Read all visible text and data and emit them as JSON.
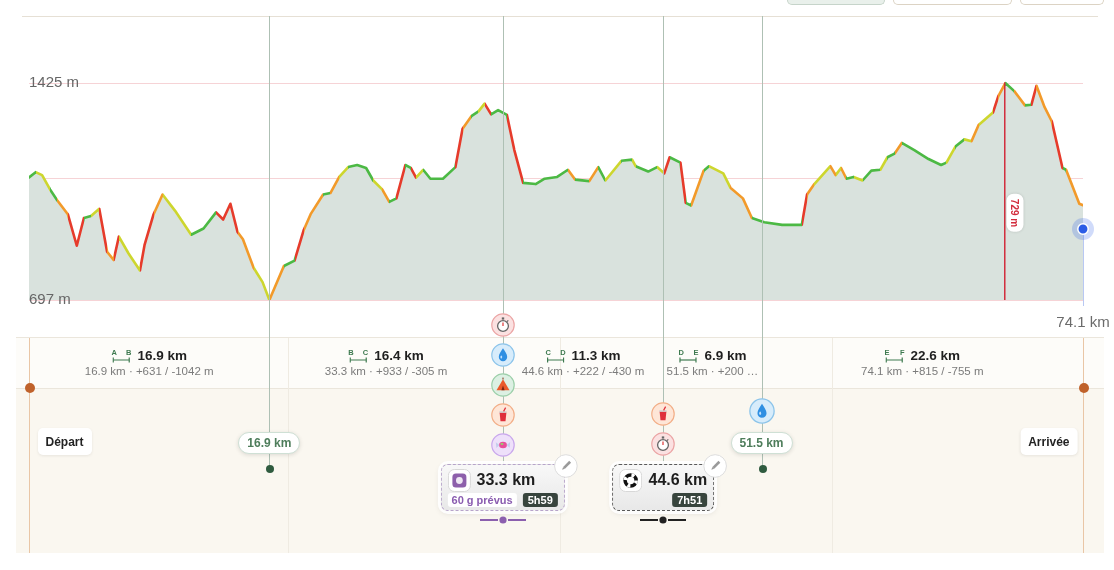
{
  "chart_data": {
    "type": "area",
    "x": [
      0,
      0.47,
      0.92,
      1.48,
      1.98,
      2.73,
      3.36,
      3.86,
      4.36,
      4.94,
      5.49,
      5.95,
      6.32,
      7.0,
      7.8,
      8.13,
      8.76,
      9.39,
      10.26,
      11.4,
      12.27,
      13.15,
      13.65,
      14.16,
      14.66,
      15.04,
      15.79,
      16.42,
      16.9,
      17.92,
      18.67,
      19.3,
      19.8,
      20.68,
      21.19,
      21.81,
      22.44,
      23.07,
      23.7,
      24.2,
      24.83,
      25.33,
      25.83,
      26.46,
      26.84,
      27.21,
      27.71,
      28.22,
      29.1,
      29.98,
      30.48,
      31.1,
      31.6,
      32.03,
      32.49,
      32.98,
      33.6,
      34.12,
      34.74,
      35.62,
      36.25,
      37.13,
      37.89,
      38.39,
      39.39,
      40.02,
      40.52,
      41.65,
      42.4,
      42.65,
      43.53,
      44.16,
      44.66,
      45.04,
      45.8,
      46.17,
      46.55,
      47.43,
      47.8,
      48.81,
      49.31,
      50.19,
      50.82,
      51.69,
      52.95,
      53.95,
      54.33,
      54.7,
      55.21,
      56.34,
      56.71,
      57.09,
      57.47,
      57.97,
      58.6,
      59.22,
      59.85,
      60.35,
      60.85,
      61.36,
      62.24,
      63.24,
      64.12,
      64.5,
      65.13,
      65.76,
      66.26,
      66.76,
      67.77,
      68.14,
      68.64,
      69.27,
      70.02,
      70.47,
      70.83,
      71.4,
      71.91,
      72.66,
      72.91,
      73.84,
      74.1
    ],
    "series": [
      {
        "type": "area",
        "color": "#d9e2dd",
        "values": [
          1108,
          1126,
          1116,
          1068,
          1032,
          985,
          879,
          972,
          979,
          1003,
          859,
          831,
          910,
          853,
          796,
          883,
          985,
          1051,
          997,
          916,
          937,
          991,
          967,
          1020,
          925,
          901,
          805,
          757,
          697,
          811,
          829,
          930,
          985,
          1051,
          1056,
          1110,
          1143,
          1150,
          1140,
          1098,
          1068,
          1026,
          1038,
          1150,
          1140,
          1108,
          1134,
          1104,
          1104,
          1143,
          1272,
          1314,
          1330,
          1356,
          1320,
          1334,
          1318,
          1200,
          1090,
          1086,
          1104,
          1110,
          1134,
          1101,
          1096,
          1143,
          1098,
          1164,
          1168,
          1146,
          1128,
          1143,
          1122,
          1176,
          1158,
          1023,
          1014,
          1131,
          1146,
          1122,
          1074,
          1038,
          972,
          958,
          949,
          949,
          949,
          1051,
          1086,
          1146,
          1116,
          1140,
          1104,
          1110,
          1098,
          1131,
          1134,
          1176,
          1188,
          1224,
          1200,
          1170,
          1150,
          1158,
          1212,
          1236,
          1230,
          1284,
          1326,
          1380,
          1425,
          1398,
          1350,
          1352,
          1416,
          1344,
          1296,
          1140,
          1134,
          1020,
          1015
        ],
        "colors": [
          "#4cb944",
          "#4cb944",
          "#cdd62e",
          "#cdd62e",
          "#4cb944",
          "#f29a2a",
          "#e63b2b",
          "#e63b2b",
          "#4cb944",
          "#cdd62e",
          "#e63b2b",
          "#f29a2a",
          "#e63b2b",
          "#cdd62e",
          "#cdd62e",
          "#e63b2b",
          "#e63b2b",
          "#f29a2a",
          "#cdd62e",
          "#cdd62e",
          "#4cb944",
          "#4cb944",
          "#e63b2b",
          "#e63b2b",
          "#e63b2b",
          "#f29a2a",
          "#f29a2a",
          "#cdd62e",
          "#cdd62e",
          "#f29a2a",
          "#4cb944",
          "#e63b2b",
          "#f29a2a",
          "#f29a2a",
          "#4cb944",
          "#f29a2a",
          "#cdd62e",
          "#4cb944",
          "#4cb944",
          "#4cb944",
          "#cdd62e",
          "#f29a2a",
          "#4cb944",
          "#e63b2b",
          "#4cb944",
          "#e63b2b",
          "#cdd62e",
          "#4cb944",
          "#4cb944",
          "#4cb944",
          "#e63b2b",
          "#f29a2a",
          "#4cb944",
          "#cdd62e",
          "#e63b2b",
          "#4cb944",
          "#4cb944",
          "#e63b2b",
          "#e63b2b",
          "#4cb944",
          "#4cb944",
          "#4cb944",
          "#4cb944",
          "#f29a2a",
          "#4cb944",
          "#f29a2a",
          "#4cb944",
          "#cdd62e",
          "#4cb944",
          "#cdd62e",
          "#4cb944",
          "#4cb944",
          "#cdd62e",
          "#e63b2b",
          "#4cb944",
          "#e63b2b",
          "#4cb944",
          "#f29a2a",
          "#4cb944",
          "#cdd62e",
          "#cdd62e",
          "#f29a2a",
          "#f29a2a",
          "#4cb944",
          "#4cb944",
          "#4cb944",
          "#4cb944",
          "#e63b2b",
          "#f29a2a",
          "#cdd62e",
          "#f29a2a",
          "#cdd62e",
          "#f29a2a",
          "#4cb944",
          "#cdd62e",
          "#4cb944",
          "#4cb944",
          "#cdd62e",
          "#4cb944",
          "#f29a2a",
          "#4cb944",
          "#4cb944",
          "#4cb944",
          "#4cb944",
          "#cdd62e",
          "#4cb944",
          "#cdd62e",
          "#f29a2a",
          "#cdd62e",
          "#e63b2b",
          "#f29a2a",
          "#4cb944",
          "#f29a2a",
          "#4cb944",
          "#e63b2b",
          "#f29a2a",
          "#f29a2a",
          "#e63b2b",
          "#4cb944",
          "#f29a2a",
          "#f29a2a"
        ]
      },
      {
        "type": "line",
        "name": "729 m",
        "color": "#d22c3c",
        "x": [
          68.6,
          68.6
        ],
        "values": [
          697,
          1425
        ]
      }
    ],
    "xlim": [
      0,
      74.1
    ],
    "ylim": [
      697,
      1650
    ],
    "xticks": [
      {
        "value": 74.1,
        "label": "74.1 km"
      }
    ],
    "yticks": [
      {
        "value": 697,
        "label": "697 m"
      },
      {
        "value": 1105,
        "label": null
      },
      {
        "value": 1425,
        "label": "1425 m"
      }
    ],
    "grid": "y",
    "ref_lines": [
      {
        "axis": "x",
        "value": 16.9,
        "label": "16.9 km",
        "color": "#aec0b4"
      },
      {
        "axis": "x",
        "value": 33.3,
        "label": "33.3 km",
        "color": "#aec0b4"
      },
      {
        "axis": "x",
        "value": 44.6,
        "label": "44.6 km",
        "color": "#aec0b4"
      },
      {
        "axis": "x",
        "value": 51.5,
        "label": "51.5 km",
        "color": "#aec0b4"
      }
    ],
    "annotations": [
      "A",
      "B",
      "16.9 km",
      "16.9 km · +631 / -1042 m",
      "B",
      "C",
      "16.4 km",
      "33.3 km · +933 / -305 m",
      "C",
      "D",
      "11.3 km",
      "44.6 km · +222 / -430 m",
      "D",
      "E",
      "6.9 km",
      "51.5 km · +200 …",
      "E",
      "F",
      "22.6 km",
      "74.1 km · +815 / -755 m",
      "Départ",
      "Arrivée",
      "60 g prévus",
      "5h59",
      "7h51"
    ]
  }
}
